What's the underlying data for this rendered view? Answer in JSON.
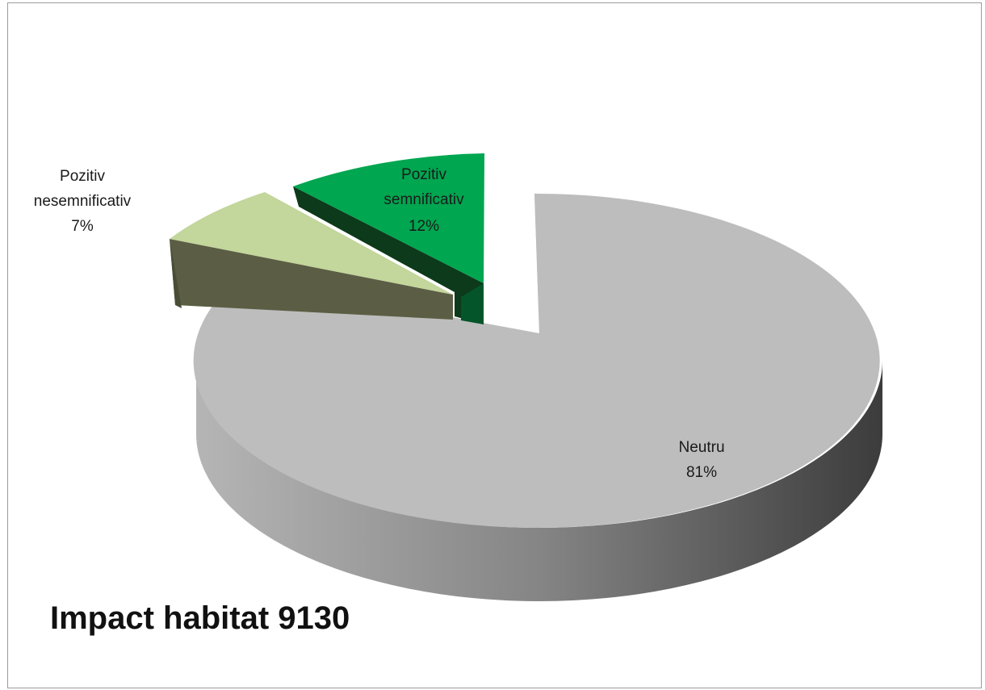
{
  "chart_data": {
    "type": "pie",
    "title": "Impact habitat 9130",
    "exploded": true,
    "three_d": true,
    "slices": [
      {
        "name": "Neutru",
        "line1": "Neutru",
        "line2": "",
        "percent_label": "81%",
        "value": 81,
        "color": "#bdbdbd"
      },
      {
        "name": "Pozitiv nesemnificativ",
        "line1": "Pozitiv",
        "line2": "nesemnificativ",
        "percent_label": "7%",
        "value": 7,
        "color": "#c3d69b"
      },
      {
        "name": "Pozitiv semnificativ",
        "line1": "Pozitiv",
        "line2": "semnificativ",
        "percent_label": "12%",
        "value": 12,
        "color": "#00a650"
      }
    ],
    "legend": "none"
  }
}
